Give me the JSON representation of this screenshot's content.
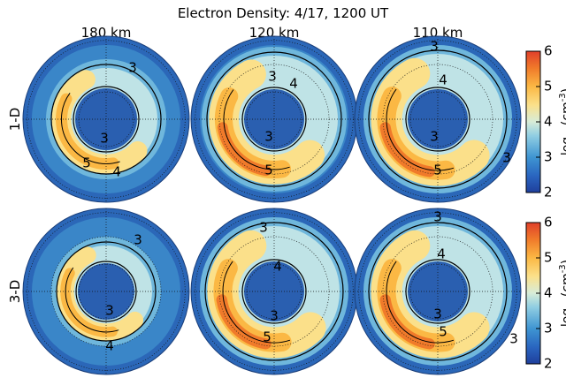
{
  "title": "Electron Density: 4/17, 1200 UT",
  "column_labels": [
    "180 km",
    "120 km",
    "110 km"
  ],
  "row_labels": [
    "1-D",
    "3-D"
  ],
  "colorbar": {
    "label_prefix": "log",
    "label_sub": "10",
    "label_main": "(cm",
    "label_sup": "-3",
    "label_close": ")",
    "ticks": [
      "2",
      "3",
      "4",
      "5",
      "6"
    ],
    "range": [
      2,
      6
    ],
    "colors": [
      "#1f3f9c",
      "#2a66c0",
      "#3f95d2",
      "#8fcde2",
      "#d7ecd8",
      "#fbe08a",
      "#fbb844",
      "#f07a2a",
      "#e0402a"
    ]
  },
  "panels": [
    {
      "row": "1-D",
      "column": "180 km",
      "contour_labels": [
        "3",
        "3",
        "4",
        "5"
      ]
    },
    {
      "row": "1-D",
      "column": "120 km",
      "contour_labels": [
        "3",
        "4",
        "3",
        "5"
      ]
    },
    {
      "row": "1-D",
      "column": "110 km",
      "contour_labels": [
        "3",
        "4",
        "3",
        "5",
        "3"
      ]
    },
    {
      "row": "3-D",
      "column": "180 km",
      "contour_labels": [
        "3",
        "3",
        "4"
      ]
    },
    {
      "row": "3-D",
      "column": "120 km",
      "contour_labels": [
        "3",
        "4",
        "3",
        "5"
      ]
    },
    {
      "row": "3-D",
      "column": "110 km",
      "contour_labels": [
        "3",
        "4",
        "3",
        "5",
        "3"
      ]
    }
  ]
}
